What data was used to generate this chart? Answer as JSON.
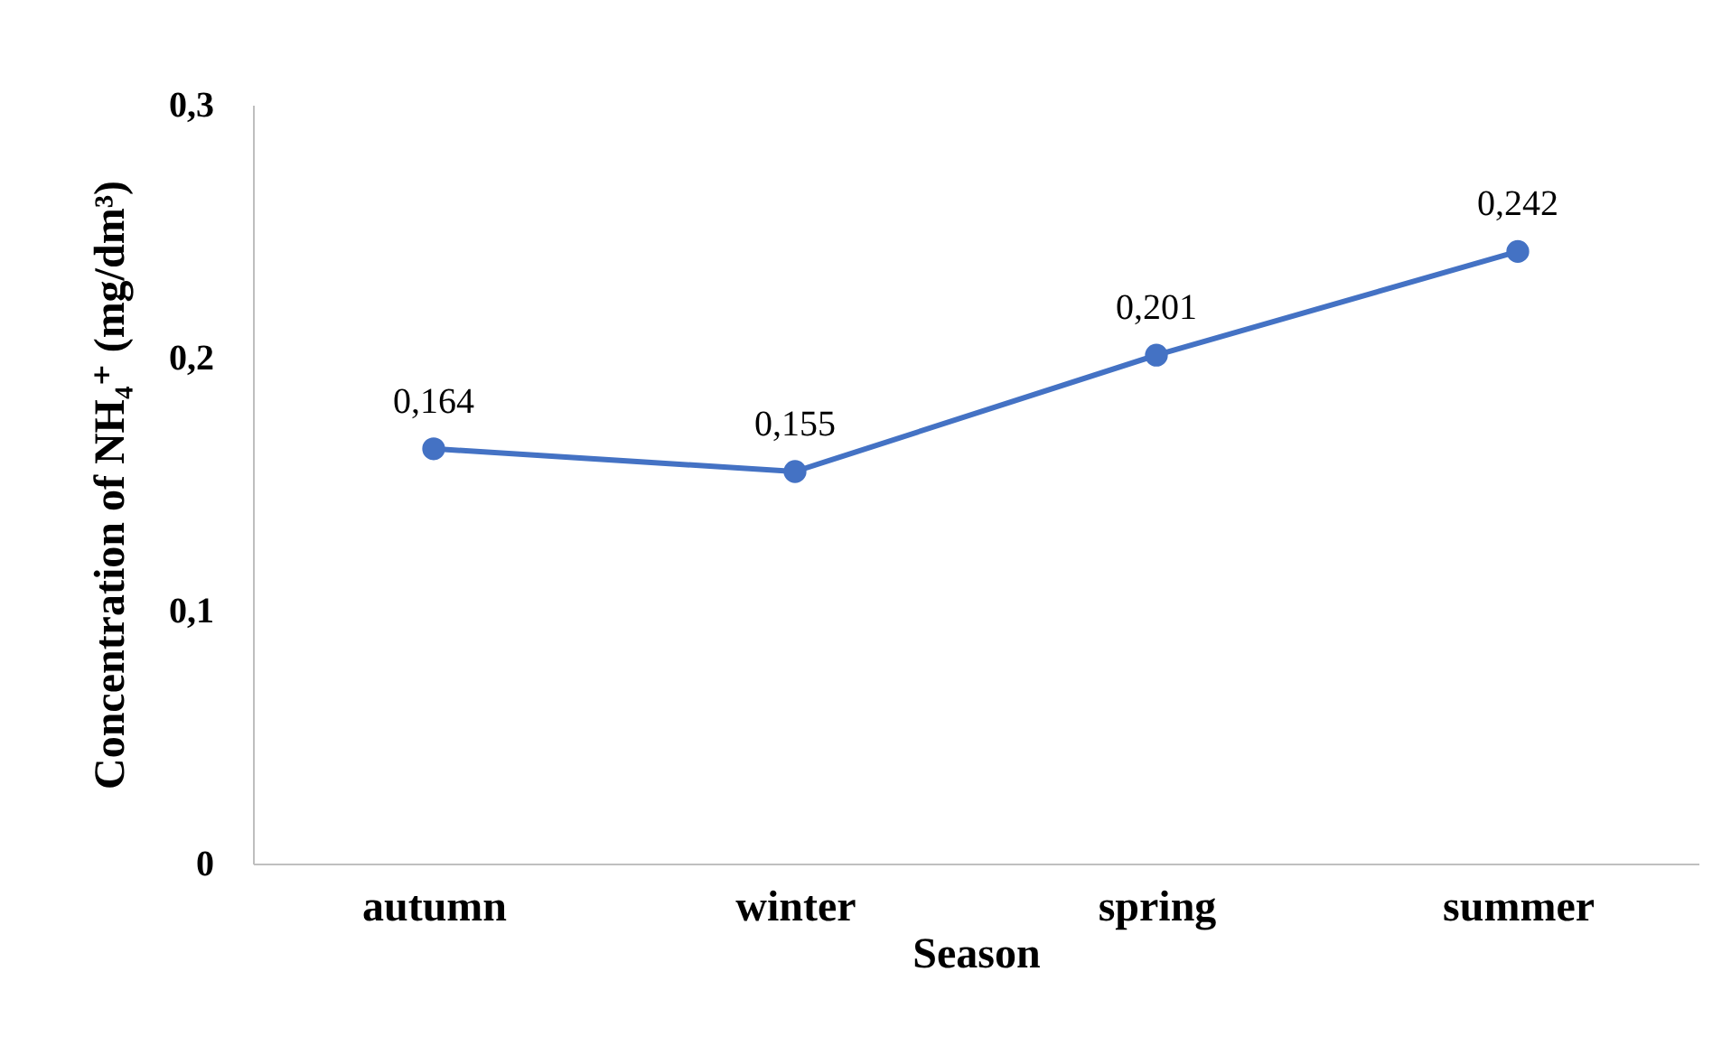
{
  "chart_data": {
    "type": "line",
    "xlabel": "Season",
    "ylabel": "Concentration of  NH₄⁺ (mg/dm³)",
    "categories": [
      "autumn",
      "winter",
      "spring",
      "summer"
    ],
    "series": [
      {
        "color": "#4472c4",
        "values": [
          0.164,
          0.155,
          0.201,
          0.242
        ],
        "value_labels": [
          "0,164",
          "0,155",
          "0,201",
          "0,242"
        ]
      }
    ],
    "ylim": [
      0,
      0.3
    ],
    "yticks": [
      {
        "value": 0,
        "label": "0"
      },
      {
        "value": 0.1,
        "label": "0,1"
      },
      {
        "value": 0.2,
        "label": "0,2"
      },
      {
        "value": 0.3,
        "label": "0,3"
      }
    ],
    "grid": false,
    "marker": "circle",
    "line_style": "solid"
  }
}
